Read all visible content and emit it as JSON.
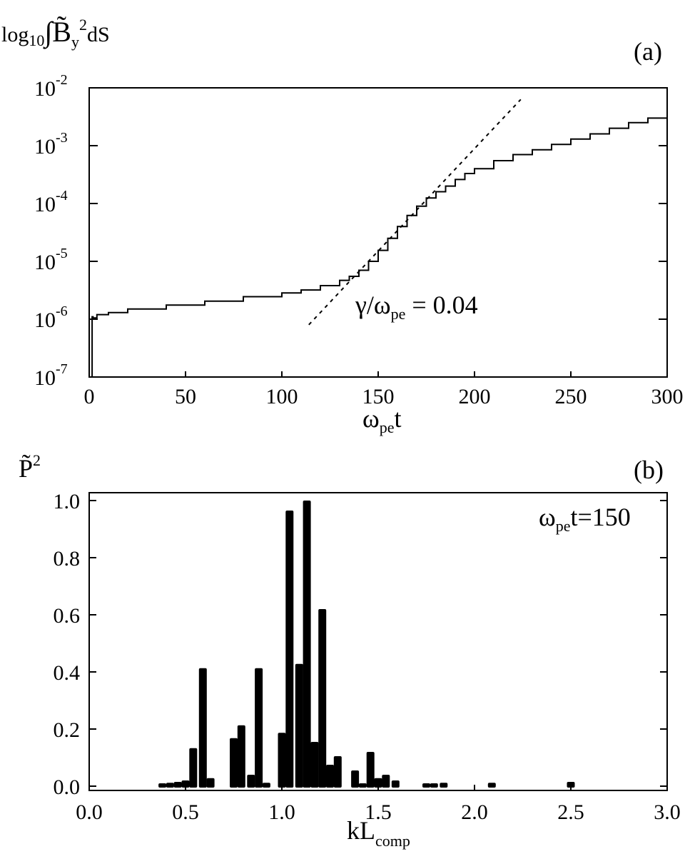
{
  "figure": {
    "panels": [
      "(a)",
      "(b)"
    ]
  },
  "chart_data": [
    {
      "type": "line",
      "panel_label": "(a)",
      "ylabel": {
        "pre": "log",
        "sub": "10",
        "main": "∫B̃",
        "subscript_y": "y",
        "sup": "2",
        "post": "dS"
      },
      "xlabel": {
        "main": "ω",
        "sub": "pe",
        "post": "t"
      },
      "xlim": [
        0,
        300
      ],
      "ylim": [
        1e-07,
        0.01
      ],
      "yscale": "log",
      "x_ticks": [
        "0",
        "50",
        "100",
        "150",
        "200",
        "250",
        "300"
      ],
      "y_ticks": [
        {
          "base": "10",
          "exp": "-7"
        },
        {
          "base": "10",
          "exp": "-6"
        },
        {
          "base": "10",
          "exp": "-5"
        },
        {
          "base": "10",
          "exp": "-4"
        },
        {
          "base": "10",
          "exp": "-3"
        },
        {
          "base": "10",
          "exp": "-2"
        }
      ],
      "annotation": {
        "main": "γ/ω",
        "sub": "pe",
        "post": " = 0.04"
      },
      "series": [
        {
          "style": "solid step",
          "x": [
            0,
            1,
            1.5,
            2,
            4,
            10,
            20,
            40,
            60,
            80,
            100,
            110,
            120,
            130,
            135,
            140,
            145,
            150,
            155,
            160,
            165,
            170,
            175,
            180,
            185,
            190,
            195,
            200,
            210,
            220,
            230,
            240,
            250,
            260,
            270,
            280,
            290,
            300
          ],
          "y": [
            1e-07,
            1e-07,
            1.1e-06,
            1.05e-06,
            1.2e-06,
            1.3e-06,
            1.5e-06,
            1.75e-06,
            2.05e-06,
            2.45e-06,
            2.85e-06,
            3.2e-06,
            3.8e-06,
            4.7e-06,
            5.5e-06,
            7e-06,
            1e-05,
            1.55e-05,
            2.5e-05,
            4e-05,
            6.2e-05,
            9e-05,
            0.000125,
            0.00016,
            0.0002,
            0.00026,
            0.00033,
            0.0004,
            0.00055,
            0.0007,
            0.00085,
            0.00105,
            0.0013,
            0.0016,
            0.002,
            0.0025,
            0.003,
            0.0038
          ]
        },
        {
          "style": "dashed fit",
          "x": [
            114,
            224
          ],
          "y": [
            8e-07,
            0.0063
          ]
        }
      ]
    },
    {
      "type": "bar",
      "panel_label": "(b)",
      "ylabel": {
        "main": "P̃",
        "sup": "2"
      },
      "xlabel": {
        "main": "kL",
        "sub": "comp"
      },
      "xlim": [
        0,
        3
      ],
      "ylim": [
        0,
        1.05
      ],
      "x_ticks": [
        "0.0",
        "0.5",
        "1.0",
        "1.5",
        "2.0",
        "2.5",
        "3.0"
      ],
      "y_ticks": [
        "0.0",
        "0.2",
        "0.4",
        "0.6",
        "0.8",
        "1.0"
      ],
      "annotation": {
        "main": "ω",
        "sub": "pe",
        "post": "t=150"
      },
      "x": [
        0.38,
        0.42,
        0.46,
        0.5,
        0.54,
        0.59,
        0.63,
        0.67,
        0.71,
        0.75,
        0.79,
        0.84,
        0.88,
        0.92,
        0.96,
        1.0,
        1.04,
        1.09,
        1.13,
        1.17,
        1.21,
        1.25,
        1.29,
        1.34,
        1.38,
        1.42,
        1.46,
        1.5,
        1.54,
        1.59,
        1.63,
        1.67,
        1.71,
        1.75,
        1.79,
        1.84,
        1.88,
        1.92,
        1.96,
        2.0,
        2.04,
        2.09,
        2.5
      ],
      "values": [
        0.01,
        0.012,
        0.015,
        0.02,
        0.133,
        0.413,
        0.028,
        0,
        0,
        0.168,
        0.213,
        0.04,
        0.413,
        0.012,
        0,
        0.187,
        0.965,
        0.428,
        1.0,
        0.155,
        0.62,
        0.075,
        0.105,
        0,
        0.055,
        0.01,
        0.12,
        0.028,
        0.04,
        0.02,
        0,
        0,
        0,
        0.01,
        0.01,
        0.012,
        0,
        0,
        0,
        0,
        0,
        0.012,
        0.015
      ]
    }
  ]
}
